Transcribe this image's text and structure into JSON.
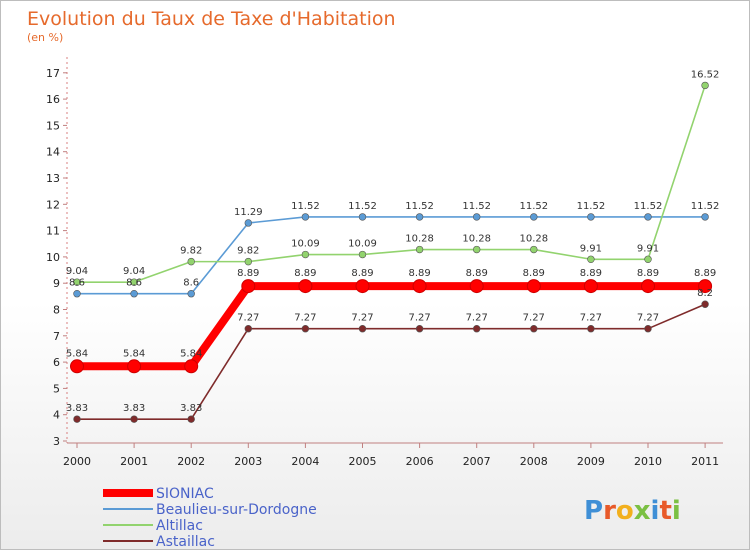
{
  "chart_data": {
    "type": "line",
    "title": "Evolution du Taux de Taxe d'Habitation",
    "subtitle": "(en %)",
    "categories": [
      "2000",
      "2001",
      "2002",
      "2003",
      "2004",
      "2005",
      "2006",
      "2007",
      "2008",
      "2009",
      "2010",
      "2011"
    ],
    "ylim": [
      3,
      17
    ],
    "yticks": [
      3,
      4,
      5,
      6,
      7,
      8,
      9,
      10,
      11,
      12,
      13,
      14,
      15,
      16,
      17
    ],
    "grid": false,
    "legend_position": "bottom-left",
    "series": [
      {
        "name": "SIONIAC",
        "color": "#ff0000",
        "values": [
          5.84,
          5.84,
          5.84,
          8.89,
          8.89,
          8.89,
          8.89,
          8.89,
          8.89,
          8.89,
          8.89,
          8.89
        ]
      },
      {
        "name": "Beaulieu-sur-Dordogne",
        "color": "#5b9bd5",
        "values": [
          8.6,
          8.6,
          8.6,
          11.29,
          11.52,
          11.52,
          11.52,
          11.52,
          11.52,
          11.52,
          11.52,
          11.52
        ]
      },
      {
        "name": "Altillac",
        "color": "#92d36e",
        "values": [
          9.04,
          9.04,
          9.82,
          9.82,
          10.09,
          10.09,
          10.28,
          10.28,
          10.28,
          9.91,
          9.91,
          16.52
        ]
      },
      {
        "name": "Astaillac",
        "color": "#7f2b2b",
        "values": [
          3.83,
          3.83,
          3.83,
          7.27,
          7.27,
          7.27,
          7.27,
          7.27,
          7.27,
          7.27,
          7.27,
          8.2
        ]
      }
    ]
  },
  "logo": {
    "text": "Proxiti"
  }
}
